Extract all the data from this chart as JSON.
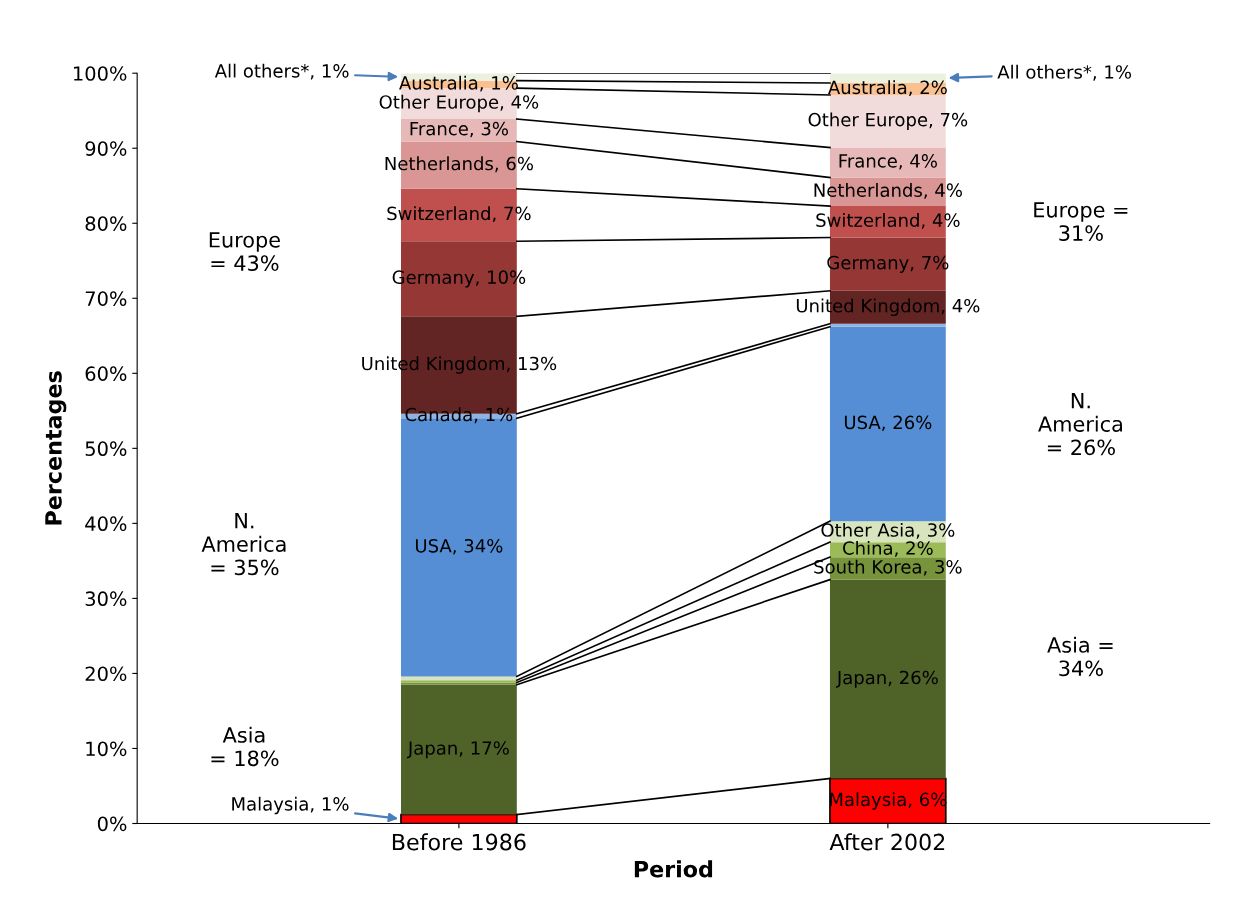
{
  "chart_data": {
    "type": "bar",
    "stacked": true,
    "xlabel": "Period",
    "ylabel": "Percentages",
    "categories": [
      "Before 1986",
      "After 2002"
    ],
    "series": [
      {
        "color": "#ff0000",
        "values": [
          1.2,
          6
        ],
        "value_labels": [
          "Malaysia, 1%",
          "Malaysia, 6%"
        ]
      },
      {
        "color": "#4f6228",
        "values": [
          17.3,
          26.5
        ],
        "value_labels": [
          "Japan, 17%",
          "Japan, 26%"
        ]
      },
      {
        "color": "#77933c",
        "values": [
          0.3,
          3
        ],
        "value_labels": [
          null,
          "South Korea, 3%"
        ]
      },
      {
        "color": "#9bbb59",
        "values": [
          0.3,
          2
        ],
        "value_labels": [
          null,
          "China, 2%"
        ]
      },
      {
        "color": "#d7e4bd",
        "values": [
          0.5,
          2.8
        ],
        "value_labels": [
          null,
          "Other Asia, 3%"
        ]
      },
      {
        "color": "#558ed5",
        "values": [
          34.4,
          25.9
        ],
        "value_labels": [
          "USA, 34%",
          "USA, 26%"
        ]
      },
      {
        "color": "#8eb4e3",
        "values": [
          0.6,
          0.4
        ],
        "value_labels": [
          "Canada, 1%",
          null
        ]
      },
      {
        "color": "#632523",
        "values": [
          13,
          4.4
        ],
        "value_labels": [
          "United Kingdom, 13%",
          "United Kingdom, 4%"
        ]
      },
      {
        "color": "#953735",
        "values": [
          10,
          7.1
        ],
        "value_labels": [
          "Germany, 10%",
          "Germany, 7%"
        ]
      },
      {
        "color": "#c0504d",
        "values": [
          7,
          4.2
        ],
        "value_labels": [
          "Switzerland, 7%",
          "Switzerland, 4%"
        ]
      },
      {
        "color": "#d99694",
        "values": [
          6.3,
          3.8
        ],
        "value_labels": [
          "Netherlands, 6%",
          "Netherlands, 4%"
        ]
      },
      {
        "color": "#e6b9b8",
        "values": [
          3,
          4
        ],
        "value_labels": [
          "France, 3%",
          "France, 4%"
        ]
      },
      {
        "color": "#f2dcdb",
        "values": [
          4.1,
          7
        ],
        "value_labels": [
          "Other Europe, 4%",
          "Other Europe, 7%"
        ]
      },
      {
        "color": "#fac090",
        "values": [
          1,
          1.6
        ],
        "value_labels": [
          "Australia, 1%",
          "Australia, 2%"
        ]
      },
      {
        "color": "#ebf1de",
        "values": [
          1,
          1.3
        ],
        "value_labels": [
          "All others*, 1%",
          "All others*, 1%"
        ]
      }
    ],
    "ylim": [
      0,
      100
    ],
    "yticks": [
      {
        "value": 0,
        "label": "0%"
      },
      {
        "value": 10,
        "label": "10%"
      },
      {
        "value": 20,
        "label": "20%"
      },
      {
        "value": 30,
        "label": "30%"
      },
      {
        "value": 40,
        "label": "40%"
      },
      {
        "value": 50,
        "label": "50%"
      },
      {
        "value": 60,
        "label": "60%"
      },
      {
        "value": 70,
        "label": "70%"
      },
      {
        "value": 80,
        "label": "80%"
      },
      {
        "value": 90,
        "label": "90%"
      },
      {
        "value": 100,
        "label": "100%"
      }
    ],
    "annotations": [
      "Europe\n= 43%",
      "N.\nAmerica\n= 35%",
      "Asia\n= 18%",
      "Europe =\n31%",
      "N.\nAmerica\n= 26%",
      "Asia =\n34%"
    ],
    "grid": false,
    "legend": false
  }
}
